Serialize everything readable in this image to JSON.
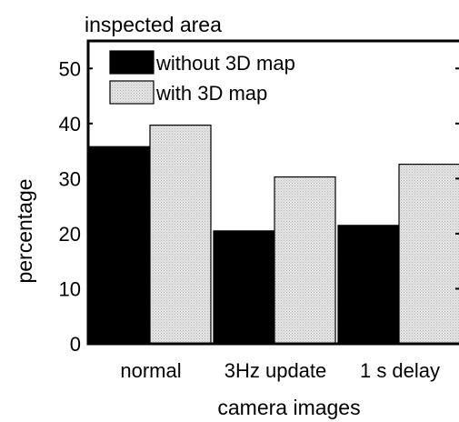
{
  "chart_data": {
    "type": "bar",
    "title": "inspected area",
    "xlabel": "camera images",
    "ylabel": "percentage",
    "categories": [
      "normal",
      "3Hz update",
      "1 s delay"
    ],
    "series": [
      {
        "name": "without 3D map",
        "values": [
          35.8,
          20.5,
          21.5
        ],
        "color": "#000000"
      },
      {
        "name": "with 3D map",
        "values": [
          39.7,
          30.3,
          32.6
        ],
        "color": "#d9d9d9"
      }
    ],
    "ylim": [
      0,
      55
    ],
    "yticks": [
      "0",
      "10",
      "20",
      "30",
      "40",
      "50"
    ],
    "grid": false,
    "legend_position": "top-left"
  }
}
